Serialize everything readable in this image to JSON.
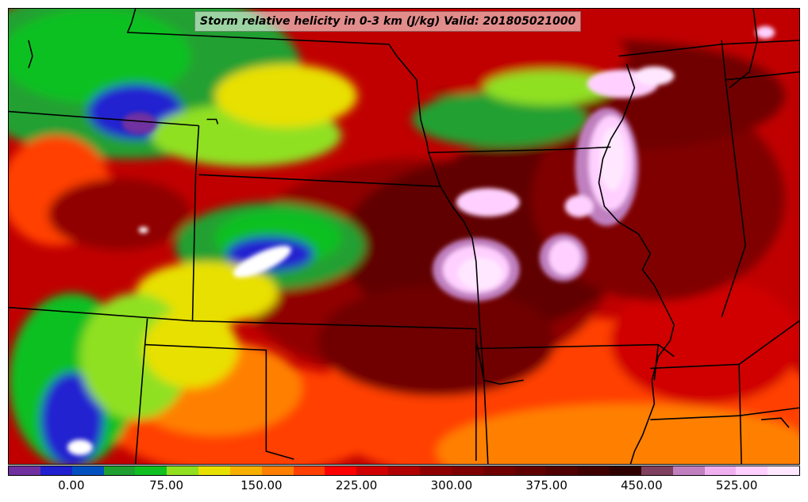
{
  "title": "Storm relative helicity in 0-3 km (J/kg) Valid: 201805021000",
  "colorbar": {
    "min": -50,
    "max": 575,
    "step": 25,
    "colors": [
      "#7030a0",
      "#2020d0",
      "#0050c0",
      "#20a030",
      "#10c020",
      "#90e020",
      "#e8e000",
      "#f8b000",
      "#ff8000",
      "#ff4000",
      "#ff0000",
      "#d00000",
      "#b00000",
      "#900000",
      "#800000",
      "#700000",
      "#600000",
      "#500000",
      "#400000",
      "#300000",
      "#804060",
      "#c080c0",
      "#f0b0f0",
      "#ffd0ff",
      "#ffe8ff"
    ],
    "ticks": [
      {
        "value": 0,
        "label": "0.00"
      },
      {
        "value": 75,
        "label": "75.00"
      },
      {
        "value": 150,
        "label": "150.00"
      },
      {
        "value": 225,
        "label": "225.00"
      },
      {
        "value": 300,
        "label": "300.00"
      },
      {
        "value": 375,
        "label": "375.00"
      },
      {
        "value": 450,
        "label": "450.00"
      },
      {
        "value": 525,
        "label": "525.00"
      }
    ]
  }
}
